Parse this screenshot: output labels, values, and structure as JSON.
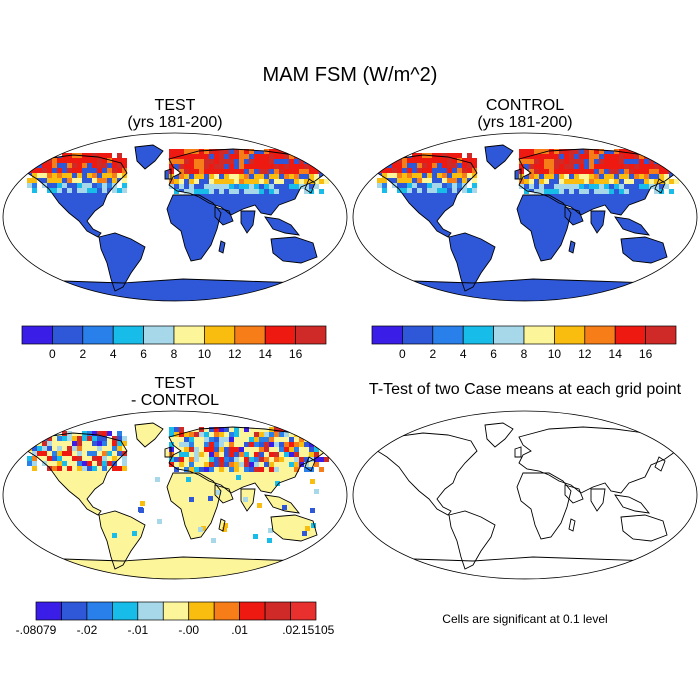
{
  "title": "MAM FSM (W/m^2)",
  "panels": {
    "test": {
      "line1": "TEST",
      "line2": "(yrs 181-200)"
    },
    "control": {
      "line1": "CONTROL",
      "line2": "(yrs 181-200)"
    },
    "diff": {
      "line1": "TEST",
      "line2": "- CONTROL"
    },
    "ttest": {
      "title": "T-Test of two Case means at each grid point"
    }
  },
  "significance_note": "Cells are significant at 0.1 level",
  "chart_data": [
    {
      "type": "heatmap",
      "title": "TEST (yrs 181-200)",
      "projection": "Robinson world map",
      "colorbar_colors": [
        "#3a1ee8",
        "#2f58d8",
        "#2a80ea",
        "#17bde8",
        "#a6d8ea",
        "#fdf59a",
        "#f9bd10",
        "#f77d18",
        "#ee1a12",
        "#cf2a28"
      ],
      "colorbar_labels": [
        "0",
        "2",
        "4",
        "6",
        "8",
        "10",
        "12",
        "14",
        "16"
      ]
    },
    {
      "type": "heatmap",
      "title": "CONTROL (yrs 181-200)",
      "projection": "Robinson world map",
      "colorbar_colors": [
        "#3a1ee8",
        "#2f58d8",
        "#2a80ea",
        "#17bde8",
        "#a6d8ea",
        "#fdf59a",
        "#f9bd10",
        "#f77d18",
        "#ee1a12",
        "#cf2a28"
      ],
      "colorbar_labels": [
        "0",
        "2",
        "4",
        "6",
        "8",
        "10",
        "12",
        "14",
        "16"
      ]
    },
    {
      "type": "heatmap",
      "title": "TEST - CONTROL",
      "projection": "Robinson world map",
      "colorbar_colors": [
        "#3a1ee8",
        "#2f58d8",
        "#2a80ea",
        "#17bde8",
        "#a6d8ea",
        "#fdf59a",
        "#f9bd10",
        "#f77d18",
        "#ee1a12",
        "#cf2a28",
        "#e8302e"
      ],
      "colorbar_labels": [
        "-.08079",
        "-.02",
        "-.01",
        "-.00",
        ".01",
        ".02",
        ".15105"
      ]
    },
    {
      "type": "heatmap",
      "title": "T-Test of two Case means at each grid point",
      "projection": "Robinson world map",
      "note": "Cells are significant at 0.1 level"
    }
  ]
}
